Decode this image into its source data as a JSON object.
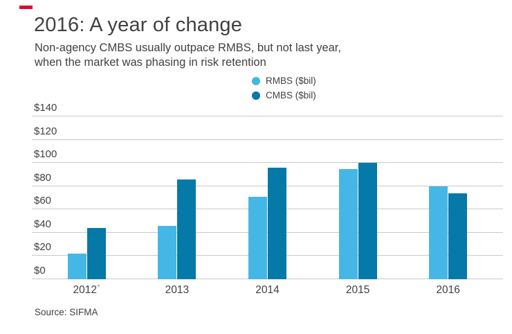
{
  "brand": {
    "accent_color": "#e4032e"
  },
  "header": {
    "title": "2016: A year of change",
    "subtitle_line1": "Non-agency CMBS usually outpace RMBS, but not last year,",
    "subtitle_line2": "when the market was phasing in risk retention"
  },
  "chart_data": {
    "type": "bar",
    "categories": [
      "2012`",
      "2013",
      "2014",
      "2015",
      "2016"
    ],
    "series": [
      {
        "name": "RMBS ($bil)",
        "color": "#45b7e6",
        "values": [
          22,
          46,
          71,
          95,
          80
        ]
      },
      {
        "name": "CMBS ($bil)",
        "color": "#0579a8",
        "values": [
          44,
          86,
          96,
          100,
          74
        ]
      }
    ],
    "title": "2016: A year of change",
    "xlabel": "",
    "ylabel": "",
    "ylim": [
      0,
      140
    ],
    "yticks": [
      0,
      20,
      40,
      60,
      80,
      100,
      120,
      140
    ],
    "ytick_labels": [
      "$0",
      "$20",
      "$40",
      "$60",
      "$80",
      "$100",
      "$120",
      "$140"
    ],
    "grid": true,
    "legend_position": "top-center"
  },
  "footer": {
    "source": "Source: SIFMA"
  }
}
